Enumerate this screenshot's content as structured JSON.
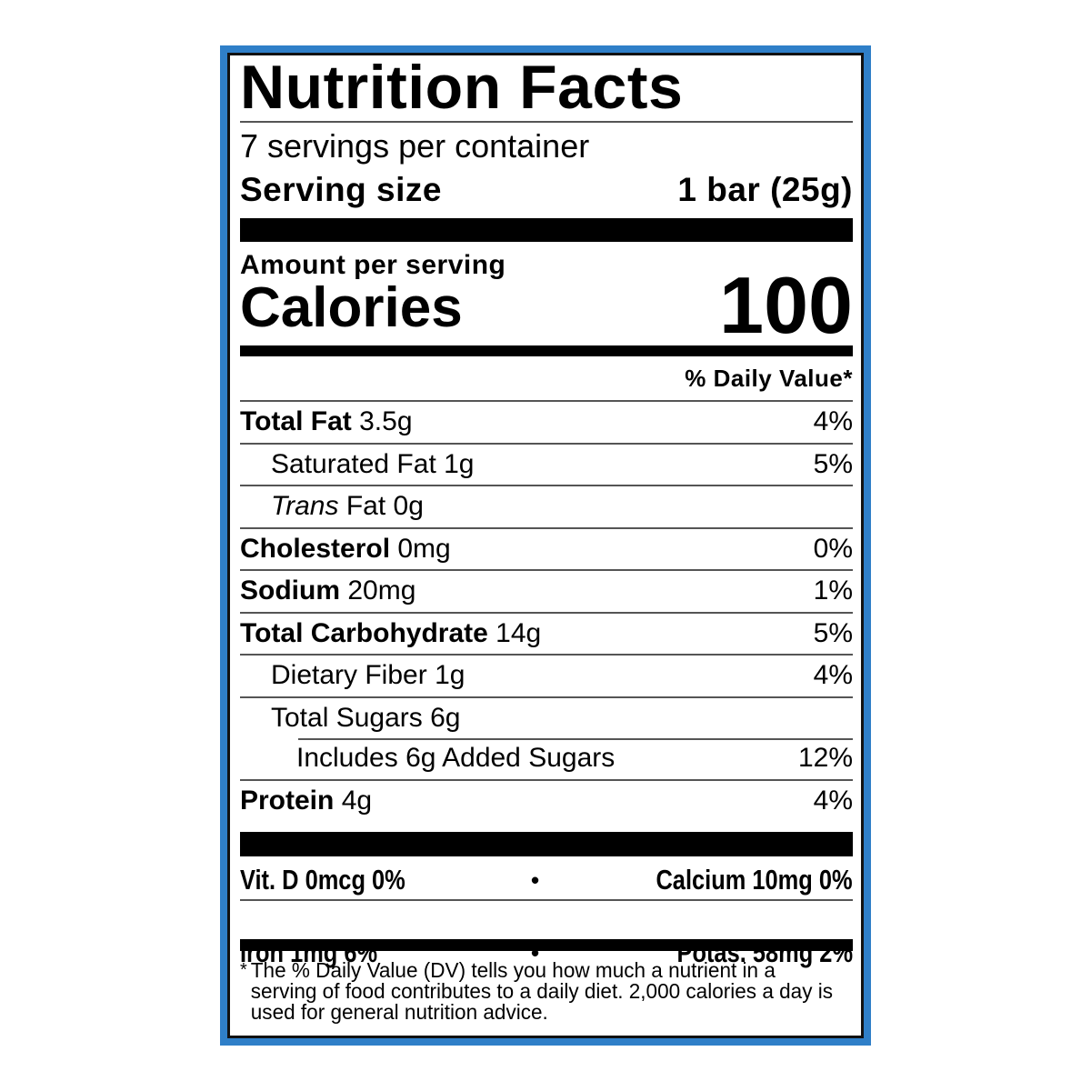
{
  "colors": {
    "frame": "#2f7fc8",
    "text": "#000000"
  },
  "label": {
    "title": "Nutrition Facts",
    "servings_per_container": "7 servings per container",
    "serving_size_label": "Serving size",
    "serving_size_value": "1 bar (25g)",
    "amount_per_serving": "Amount per serving",
    "calories_label": "Calories",
    "calories_value": "100",
    "daily_value_header": "% Daily Value*",
    "nutrients": [
      {
        "name": "Total Fat",
        "amount": "3.5g",
        "dv": "4%"
      },
      {
        "name": "Saturated Fat",
        "amount": "1g",
        "dv": "5%"
      },
      {
        "name_italic": "Trans",
        "name": "Fat",
        "amount": "0g",
        "dv": ""
      },
      {
        "name": "Cholesterol",
        "amount": "0mg",
        "dv": "0%"
      },
      {
        "name": "Sodium",
        "amount": "20mg",
        "dv": "1%"
      },
      {
        "name": "Total Carbohydrate",
        "amount": "14g",
        "dv": "5%"
      },
      {
        "name": "Dietary Fiber",
        "amount": "1g",
        "dv": "4%"
      },
      {
        "name": "Total Sugars",
        "amount": "6g",
        "dv": ""
      },
      {
        "name": "Includes 6g Added Sugars",
        "amount": "",
        "dv": "12%"
      },
      {
        "name": "Protein",
        "amount": "4g",
        "dv": "4%"
      }
    ],
    "vitamins": [
      {
        "left": "Vit. D 0mcg 0%",
        "right": "Calcium 10mg 0%"
      },
      {
        "left": "Iron 1mg 6%",
        "right": "Potas. 58mg 2%"
      }
    ],
    "separator": "•",
    "footnote_mark": "*",
    "footnote": "The % Daily Value (DV) tells you how much a nutrient in a serving of food contributes to a daily diet. 2,000 calories a day is used for general nutrition advice."
  }
}
